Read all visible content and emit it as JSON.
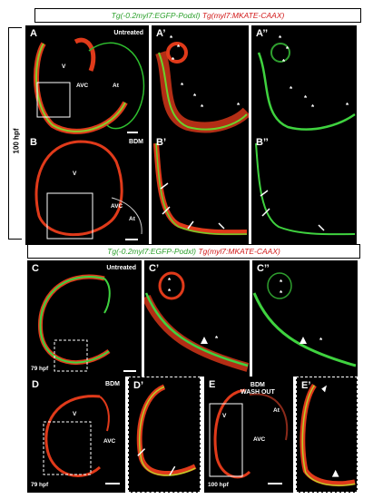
{
  "header_top": {
    "green": "Tg(-0.2myl7:EGFP-Podxl)",
    "red": "Tg(myl7:MKATE-CAAX)"
  },
  "header_bottom": {
    "green": "Tg(-0.2myl7:EGFP-Podxl)",
    "red": "Tg(myl7:MKATE-CAAX)"
  },
  "side_label": "100 hpf",
  "panels": {
    "A": {
      "label": "A",
      "condition": "Untreated",
      "v": "V",
      "avc": "AVC",
      "at": "At"
    },
    "A1": {
      "label": "A’"
    },
    "A2": {
      "label": "A’’"
    },
    "B": {
      "label": "B",
      "condition": "BDM",
      "v": "V",
      "avc": "AVC",
      "at": "At"
    },
    "B1": {
      "label": "B’"
    },
    "B2": {
      "label": "B’’"
    },
    "C": {
      "label": "C",
      "condition": "Untreated",
      "time": "79 hpf"
    },
    "C1": {
      "label": "C’"
    },
    "C2": {
      "label": "C’’"
    },
    "D": {
      "label": "D",
      "condition": "BDM",
      "v": "V",
      "avc": "AVC",
      "time": "79 hpf"
    },
    "D1": {
      "label": "D’"
    },
    "E": {
      "label": "E",
      "condition": "BDM\nWASH OUT",
      "v": "V",
      "avc": "AVC",
      "at": "At",
      "time": "100 hpf"
    },
    "E1": {
      "label": "E’"
    }
  },
  "star_symbol": "*",
  "colors": {
    "green": "#2aa02a",
    "red": "#d21818",
    "panel_bg": "#000000"
  }
}
